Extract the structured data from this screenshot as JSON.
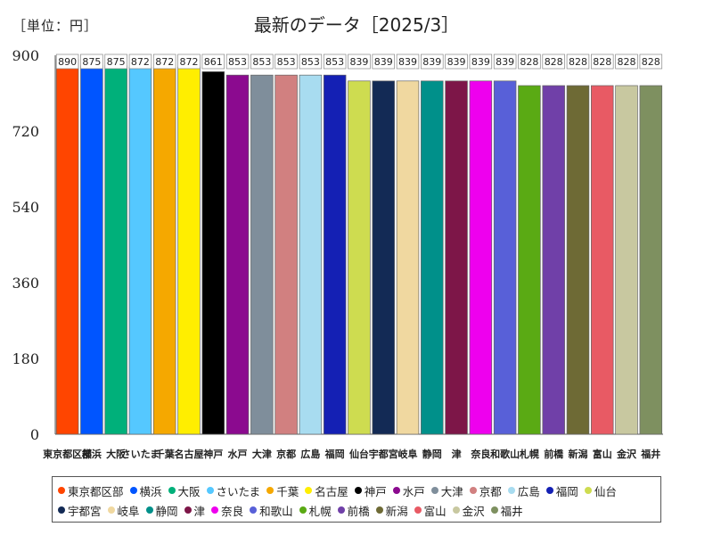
{
  "unit_label": "［単位：円］",
  "chart_data": {
    "type": "bar",
    "title": "最新のデータ［2025/3］",
    "xlabel": "",
    "ylabel": "",
    "ylim": [
      0,
      900
    ],
    "yticks": [
      0,
      180,
      360,
      540,
      720,
      900
    ],
    "grid": false,
    "legend": "bottom",
    "categories": [
      "東京都区部",
      "横浜",
      "大阪",
      "さいたま",
      "千葉",
      "名古屋",
      "神戸",
      "水戸",
      "大津",
      "京都",
      "広島",
      "福岡",
      "仙台",
      "宇都宮",
      "岐阜",
      "静岡",
      "津",
      "奈良",
      "和歌山",
      "札幌",
      "前橋",
      "新潟",
      "富山",
      "金沢",
      "福井"
    ],
    "values": [
      890,
      875,
      875,
      872,
      872,
      872,
      861,
      853,
      853,
      853,
      853,
      853,
      839,
      839,
      839,
      839,
      839,
      839,
      839,
      828,
      828,
      828,
      828,
      828,
      828
    ],
    "data_labels": [
      "890",
      "875",
      "875",
      "872",
      "872",
      "872",
      "861",
      "853",
      "853",
      "853",
      "853",
      "853",
      "839",
      "839",
      "839",
      "839",
      "839",
      "839",
      "839",
      "828",
      "828",
      "828",
      "828",
      "828",
      "828"
    ],
    "colors": [
      "#ff4500",
      "#0055ff",
      "#00b07a",
      "#55c8ff",
      "#f5a800",
      "#ffee00",
      "#000000",
      "#8b0a8f",
      "#7f8e9b",
      "#d18080",
      "#a8dcf0",
      "#1420b4",
      "#cedc50",
      "#132a55",
      "#f0d8a0",
      "#00908a",
      "#7d1648",
      "#ee00ee",
      "#5860d8",
      "#5aaa14",
      "#7040a8",
      "#6e6a35",
      "#e85a64",
      "#c8c8a0",
      "#7e9060"
    ]
  }
}
